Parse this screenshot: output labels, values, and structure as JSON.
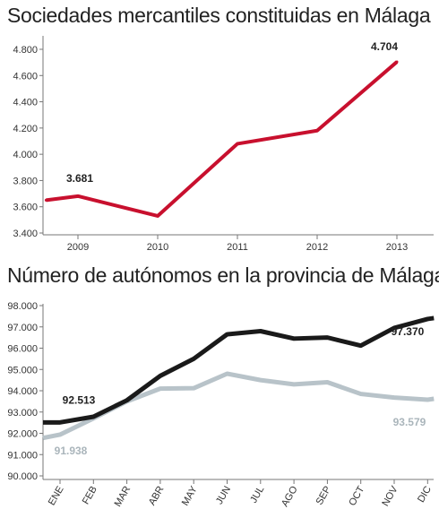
{
  "chart_data": [
    {
      "type": "line",
      "title": "Sociedades mercantiles constituidas en Málaga",
      "x": [
        "2009",
        "2010",
        "2011",
        "2012",
        "2013"
      ],
      "series": [
        {
          "color": "#c8102e",
          "points": [
            {
              "x": 2008.6,
              "y": 3650
            },
            {
              "x": 2009,
              "y": 3681
            },
            {
              "x": 2010,
              "y": 3530
            },
            {
              "x": 2011,
              "y": 4080
            },
            {
              "x": 2012,
              "y": 4180
            },
            {
              "x": 2013,
              "y": 4704
            }
          ]
        }
      ],
      "annotations": [
        {
          "text": "3.681",
          "x": 2009,
          "y": 3681
        },
        {
          "text": "4.704",
          "x": 2013,
          "y": 4704
        }
      ],
      "y_ticks": [
        "3.400",
        "3.600",
        "3.800",
        "4.000",
        "4.200",
        "4.400",
        "4.600",
        "4.800"
      ],
      "ylim": [
        3400,
        4880
      ],
      "grid": false
    },
    {
      "type": "line",
      "title": "Número de autónomos en la provincia de Málaga",
      "categories": [
        "ENE",
        "FEB",
        "MAR",
        "ABR",
        "MAY",
        "JUN",
        "JUL",
        "AGO",
        "SEP",
        "OCT",
        "NOV",
        "DIC"
      ],
      "series": [
        {
          "color": "#1a1a1a",
          "start": 92513,
          "values": [
            92513,
            92780,
            93550,
            94700,
            95500,
            96650,
            96800,
            96450,
            96500,
            96120,
            96950,
            97370
          ]
        },
        {
          "color": "#b8c3c9",
          "start": 91780,
          "values": [
            91938,
            92700,
            93500,
            94100,
            94120,
            94800,
            94500,
            94300,
            94400,
            93850,
            93680,
            93579
          ]
        }
      ],
      "annotations": [
        {
          "text": "92.513",
          "series": 0,
          "index": 0
        },
        {
          "text": "97.370",
          "series": 0,
          "index": 11
        },
        {
          "text": "91.938",
          "series": 1,
          "index": 0
        },
        {
          "text": "93.579",
          "series": 1,
          "index": 11
        }
      ],
      "y_ticks": [
        "90.000",
        "91.000",
        "92.000",
        "93.000",
        "94.000",
        "95.000",
        "96.000",
        "97.000",
        "98.000"
      ],
      "ylim": [
        90000,
        98000
      ],
      "grid": false
    }
  ]
}
